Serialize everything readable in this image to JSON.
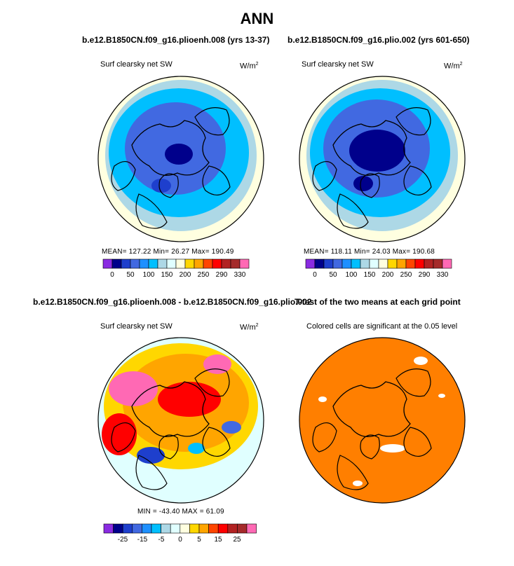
{
  "page_title": "ANN",
  "colors": {
    "clearsky_scale": [
      "#8a2be2",
      "#00008b",
      "#1e3fcd",
      "#4169e1",
      "#1e90ff",
      "#00bfff",
      "#add8e6",
      "#e0ffff",
      "#ffffe0",
      "#ffd700",
      "#ffa500",
      "#ff4500",
      "#ff0000",
      "#b22222",
      "#a52a2a",
      "#ff69b4"
    ],
    "diff_scale": [
      "#8a2be2",
      "#00008b",
      "#1e3fcd",
      "#4169e1",
      "#1e90ff",
      "#00bfff",
      "#add8e6",
      "#e0ffff",
      "#ffffe0",
      "#ffd700",
      "#ffa500",
      "#ff4500",
      "#ff0000",
      "#b22222",
      "#a52a2a",
      "#ff69b4"
    ],
    "significance": "#ff7f00",
    "coastline": "#000000"
  },
  "panels": {
    "p1": {
      "title": "b.e12.B1850CN.f09_g16.plioenh.008 (yrs 13-37)",
      "variable": "Surf clearsky net SW",
      "units_base": "W/m",
      "units_exp": "2",
      "stats": "MEAN= 127.22   Min=  26.27   Max= 190.49",
      "colorbar_ticks": [
        "0",
        "50",
        "100",
        "150",
        "200",
        "250",
        "290",
        "330"
      ]
    },
    "p2": {
      "title": "b.e12.B1850CN.f09_g16.plio.002 (yrs 601-650)",
      "variable": "Surf clearsky net SW",
      "units_base": "W/m",
      "units_exp": "2",
      "stats": "MEAN= 118.11   Min=  24.03   Max= 190.68",
      "colorbar_ticks": [
        "0",
        "50",
        "100",
        "150",
        "200",
        "250",
        "290",
        "330"
      ]
    },
    "p3": {
      "title": "b.e12.B1850CN.f09_g16.plioenh.008 - b.e12.B1850CN.f09_g16.plio.002",
      "variable": "Surf clearsky net SW",
      "units_base": "W/m",
      "units_exp": "2",
      "stats": "MIN = -43.40  MAX =  61.09",
      "colorbar_ticks": [
        "-25",
        "-15",
        "-5",
        "0",
        "5",
        "15",
        "25"
      ]
    },
    "p4": {
      "title": "T-test of the two means at each grid point",
      "subtitle": "Colored cells are significant at the 0.05 level"
    }
  },
  "chart_data": [
    {
      "type": "heatmap",
      "projection": "north polar stereographic",
      "title": "b.e12.B1850CN.f09_g16.plioenh.008 (yrs 13-37)",
      "variable": "Surf clearsky net SW",
      "units": "W/m2",
      "mean": 127.22,
      "min": 26.27,
      "max": 190.49,
      "colorbar_ticks": [
        0,
        50,
        100,
        150,
        200,
        250,
        290,
        330
      ]
    },
    {
      "type": "heatmap",
      "projection": "north polar stereographic",
      "title": "b.e12.B1850CN.f09_g16.plio.002 (yrs 601-650)",
      "variable": "Surf clearsky net SW",
      "units": "W/m2",
      "mean": 118.11,
      "min": 24.03,
      "max": 190.68,
      "colorbar_ticks": [
        0,
        50,
        100,
        150,
        200,
        250,
        290,
        330
      ]
    },
    {
      "type": "heatmap",
      "projection": "north polar stereographic",
      "title": "b.e12.B1850CN.f09_g16.plioenh.008 - b.e12.B1850CN.f09_g16.plio.002",
      "variable": "Surf clearsky net SW",
      "units": "W/m2",
      "min": -43.4,
      "max": 61.09,
      "colorbar_ticks": [
        -25,
        -15,
        -5,
        0,
        5,
        15,
        25
      ]
    },
    {
      "type": "heatmap",
      "projection": "north polar stereographic",
      "title": "T-test of the two means at each grid point",
      "subtitle": "Colored cells are significant at the 0.05 level",
      "significance_level": 0.05
    }
  ]
}
